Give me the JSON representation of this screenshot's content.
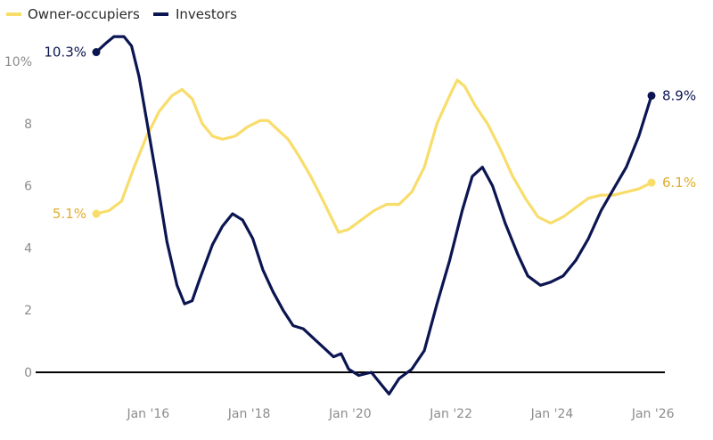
{
  "chart_data": {
    "type": "line",
    "x_format": "year fraction (tick labels as month year)",
    "ylim": [
      0,
      10.3
    ],
    "y_ticks": [
      0,
      2,
      4,
      6,
      8,
      10
    ],
    "y_tick_labels": [
      "0",
      "2",
      "4",
      "6",
      "8",
      "10%"
    ],
    "x_ticks": [
      2016,
      2018,
      2020,
      2022,
      2024,
      2026
    ],
    "x_tick_labels": [
      "Jan '16",
      "Jan '18",
      "Jan '20",
      "Jan '22",
      "Jan '24",
      "Jan '26"
    ],
    "grid": false,
    "legend": "top-left",
    "series": [
      {
        "name": "Owner-occupiers",
        "color": "#f8dd6b",
        "start_label": "5.1%",
        "end_label": "6.1%",
        "points": [
          [
            2015.0,
            5.1
          ],
          [
            2015.25,
            5.2
          ],
          [
            2015.5,
            5.5
          ],
          [
            2015.75,
            6.6
          ],
          [
            2016.0,
            7.6
          ],
          [
            2016.25,
            8.4
          ],
          [
            2016.5,
            8.9
          ],
          [
            2016.7,
            9.1
          ],
          [
            2016.9,
            8.8
          ],
          [
            2017.1,
            8.0
          ],
          [
            2017.3,
            7.6
          ],
          [
            2017.5,
            7.5
          ],
          [
            2017.75,
            7.6
          ],
          [
            2018.0,
            7.9
          ],
          [
            2018.25,
            8.1
          ],
          [
            2018.4,
            8.1
          ],
          [
            2018.6,
            7.8
          ],
          [
            2018.8,
            7.5
          ],
          [
            2019.0,
            7.0
          ],
          [
            2019.25,
            6.3
          ],
          [
            2019.5,
            5.5
          ],
          [
            2019.65,
            5.0
          ],
          [
            2019.8,
            4.5
          ],
          [
            2020.0,
            4.6
          ],
          [
            2020.25,
            4.9
          ],
          [
            2020.5,
            5.2
          ],
          [
            2020.75,
            5.4
          ],
          [
            2021.0,
            5.4
          ],
          [
            2021.25,
            5.8
          ],
          [
            2021.5,
            6.6
          ],
          [
            2021.75,
            8.0
          ],
          [
            2022.0,
            8.9
          ],
          [
            2022.15,
            9.4
          ],
          [
            2022.3,
            9.2
          ],
          [
            2022.5,
            8.6
          ],
          [
            2022.75,
            8.0
          ],
          [
            2023.0,
            7.2
          ],
          [
            2023.25,
            6.3
          ],
          [
            2023.5,
            5.6
          ],
          [
            2023.75,
            5.0
          ],
          [
            2024.0,
            4.8
          ],
          [
            2024.25,
            5.0
          ],
          [
            2024.5,
            5.3
          ],
          [
            2024.75,
            5.6
          ],
          [
            2025.0,
            5.7
          ],
          [
            2025.25,
            5.7
          ],
          [
            2025.5,
            5.8
          ],
          [
            2025.75,
            5.9
          ],
          [
            2026.0,
            6.1
          ]
        ]
      },
      {
        "name": "Investors",
        "color": "#0b1551",
        "start_label": "10.3%",
        "end_label": "8.9%",
        "points": [
          [
            2015.0,
            10.3
          ],
          [
            2015.2,
            10.6
          ],
          [
            2015.35,
            10.8
          ],
          [
            2015.55,
            10.8
          ],
          [
            2015.7,
            10.5
          ],
          [
            2015.85,
            9.5
          ],
          [
            2016.0,
            8.1
          ],
          [
            2016.2,
            6.2
          ],
          [
            2016.4,
            4.2
          ],
          [
            2016.6,
            2.8
          ],
          [
            2016.75,
            2.2
          ],
          [
            2016.9,
            2.3
          ],
          [
            2017.05,
            3.0
          ],
          [
            2017.3,
            4.1
          ],
          [
            2017.5,
            4.7
          ],
          [
            2017.7,
            5.1
          ],
          [
            2017.9,
            4.9
          ],
          [
            2018.1,
            4.3
          ],
          [
            2018.3,
            3.3
          ],
          [
            2018.5,
            2.6
          ],
          [
            2018.7,
            2.0
          ],
          [
            2018.9,
            1.5
          ],
          [
            2019.1,
            1.4
          ],
          [
            2019.3,
            1.1
          ],
          [
            2019.5,
            0.8
          ],
          [
            2019.7,
            0.5
          ],
          [
            2019.85,
            0.6
          ],
          [
            2020.0,
            0.1
          ],
          [
            2020.2,
            -0.1
          ],
          [
            2020.45,
            0.0
          ],
          [
            2020.65,
            -0.4
          ],
          [
            2020.8,
            -0.7
          ],
          [
            2021.0,
            -0.2
          ],
          [
            2021.25,
            0.1
          ],
          [
            2021.5,
            0.7
          ],
          [
            2021.75,
            2.2
          ],
          [
            2022.0,
            3.6
          ],
          [
            2022.25,
            5.2
          ],
          [
            2022.45,
            6.3
          ],
          [
            2022.65,
            6.6
          ],
          [
            2022.85,
            6.0
          ],
          [
            2023.1,
            4.8
          ],
          [
            2023.35,
            3.8
          ],
          [
            2023.55,
            3.1
          ],
          [
            2023.8,
            2.8
          ],
          [
            2024.0,
            2.9
          ],
          [
            2024.25,
            3.1
          ],
          [
            2024.5,
            3.6
          ],
          [
            2024.75,
            4.3
          ],
          [
            2025.0,
            5.2
          ],
          [
            2025.25,
            5.9
          ],
          [
            2025.5,
            6.6
          ],
          [
            2025.75,
            7.6
          ],
          [
            2026.0,
            8.9
          ]
        ]
      }
    ]
  }
}
